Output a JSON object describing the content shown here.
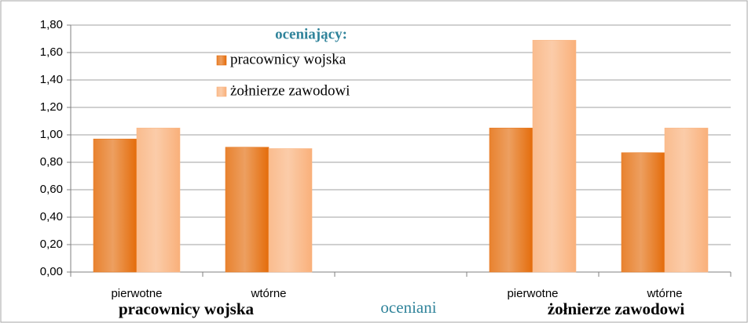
{
  "chart_data": {
    "type": "bar",
    "legend_title": "oceniający:",
    "x_label": "oceniani",
    "group_labels": [
      "pracownicy wojska",
      "żołnierze zawodowi"
    ],
    "categories": [
      "pierwotne",
      "wtórne",
      null,
      "pierwotne",
      "wtórne"
    ],
    "series": [
      {
        "name": "pracownicy wojska",
        "color": "#e46c0a",
        "values": [
          0.97,
          0.91,
          null,
          1.05,
          0.87
        ]
      },
      {
        "name": "żołnierze zawodowi",
        "color": "#f9b07a",
        "values": [
          1.05,
          0.9,
          null,
          1.69,
          1.05
        ]
      }
    ],
    "ylim": [
      0,
      1.8
    ],
    "yticks": [
      {
        "value": 0,
        "label": "0,00"
      },
      {
        "value": 0.2,
        "label": "0,20"
      },
      {
        "value": 0.4,
        "label": "0,40"
      },
      {
        "value": 0.6,
        "label": "0,60"
      },
      {
        "value": 0.8,
        "label": "0,80"
      },
      {
        "value": 1.0,
        "label": "1,00"
      },
      {
        "value": 1.2,
        "label": "1,20"
      },
      {
        "value": 1.4,
        "label": "1,40"
      },
      {
        "value": 1.6,
        "label": "1,60"
      },
      {
        "value": 1.8,
        "label": "1,80"
      }
    ],
    "grid": true
  }
}
